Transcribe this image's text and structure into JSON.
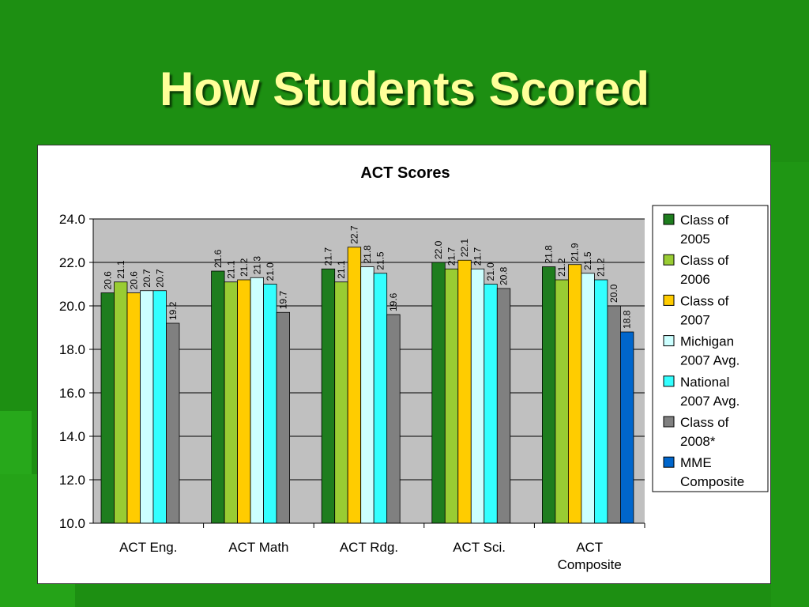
{
  "slide": {
    "title": "How Students Scored"
  },
  "chart_data": {
    "type": "bar",
    "title": "ACT Scores",
    "xlabel": "",
    "ylabel": "",
    "ylim": [
      10,
      24
    ],
    "yticks": [
      "10.0",
      "12.0",
      "14.0",
      "16.0",
      "18.0",
      "20.0",
      "22.0",
      "24.0"
    ],
    "grid": true,
    "legend_position": "right",
    "categories": [
      "ACT Eng.",
      "ACT Math",
      "ACT Rdg.",
      "ACT Sci.",
      "ACT Composite"
    ],
    "series": [
      {
        "name": "Class of 2005",
        "color": "#1e7d1e",
        "values": [
          20.6,
          21.6,
          21.7,
          22.0,
          21.8
        ]
      },
      {
        "name": "Class of 2006",
        "color": "#99cc33",
        "values": [
          21.1,
          21.1,
          21.1,
          21.7,
          21.2
        ]
      },
      {
        "name": "Class of 2007",
        "color": "#ffcc00",
        "values": [
          20.6,
          21.2,
          22.7,
          22.1,
          21.9
        ]
      },
      {
        "name": "Michigan 2007 Avg.",
        "color": "#ccffff",
        "values": [
          20.7,
          21.3,
          21.8,
          21.7,
          21.5
        ]
      },
      {
        "name": "National 2007 Avg.",
        "color": "#33ffff",
        "values": [
          20.7,
          21.0,
          21.5,
          21.0,
          21.2
        ]
      },
      {
        "name": "Class of 2008*",
        "color": "#808080",
        "values": [
          19.2,
          19.7,
          19.6,
          20.8,
          20.0
        ]
      },
      {
        "name": "MME Composite",
        "color": "#0066cc",
        "values": [
          null,
          null,
          null,
          null,
          18.8
        ]
      }
    ],
    "data_labels": [
      [
        "20.6",
        "21.1",
        "20.6",
        "20.7",
        "20.7",
        "19.2",
        null
      ],
      [
        "21.6",
        "21.1",
        "21.2",
        "21.3",
        "21.0",
        "19.7",
        null
      ],
      [
        "21.7",
        "21.1",
        "22.7",
        "21.8",
        "21.5",
        "19.6",
        null
      ],
      [
        "22.0",
        "21.7",
        "22.1",
        "21.7",
        "21.0",
        "20.8",
        null
      ],
      [
        "21.8",
        "21.2",
        "21.9",
        "21.5",
        "21.2",
        "20.0",
        "18.8"
      ]
    ],
    "style": {
      "plot_background": "#c0c0c0",
      "gridline_color": "#000000"
    }
  }
}
